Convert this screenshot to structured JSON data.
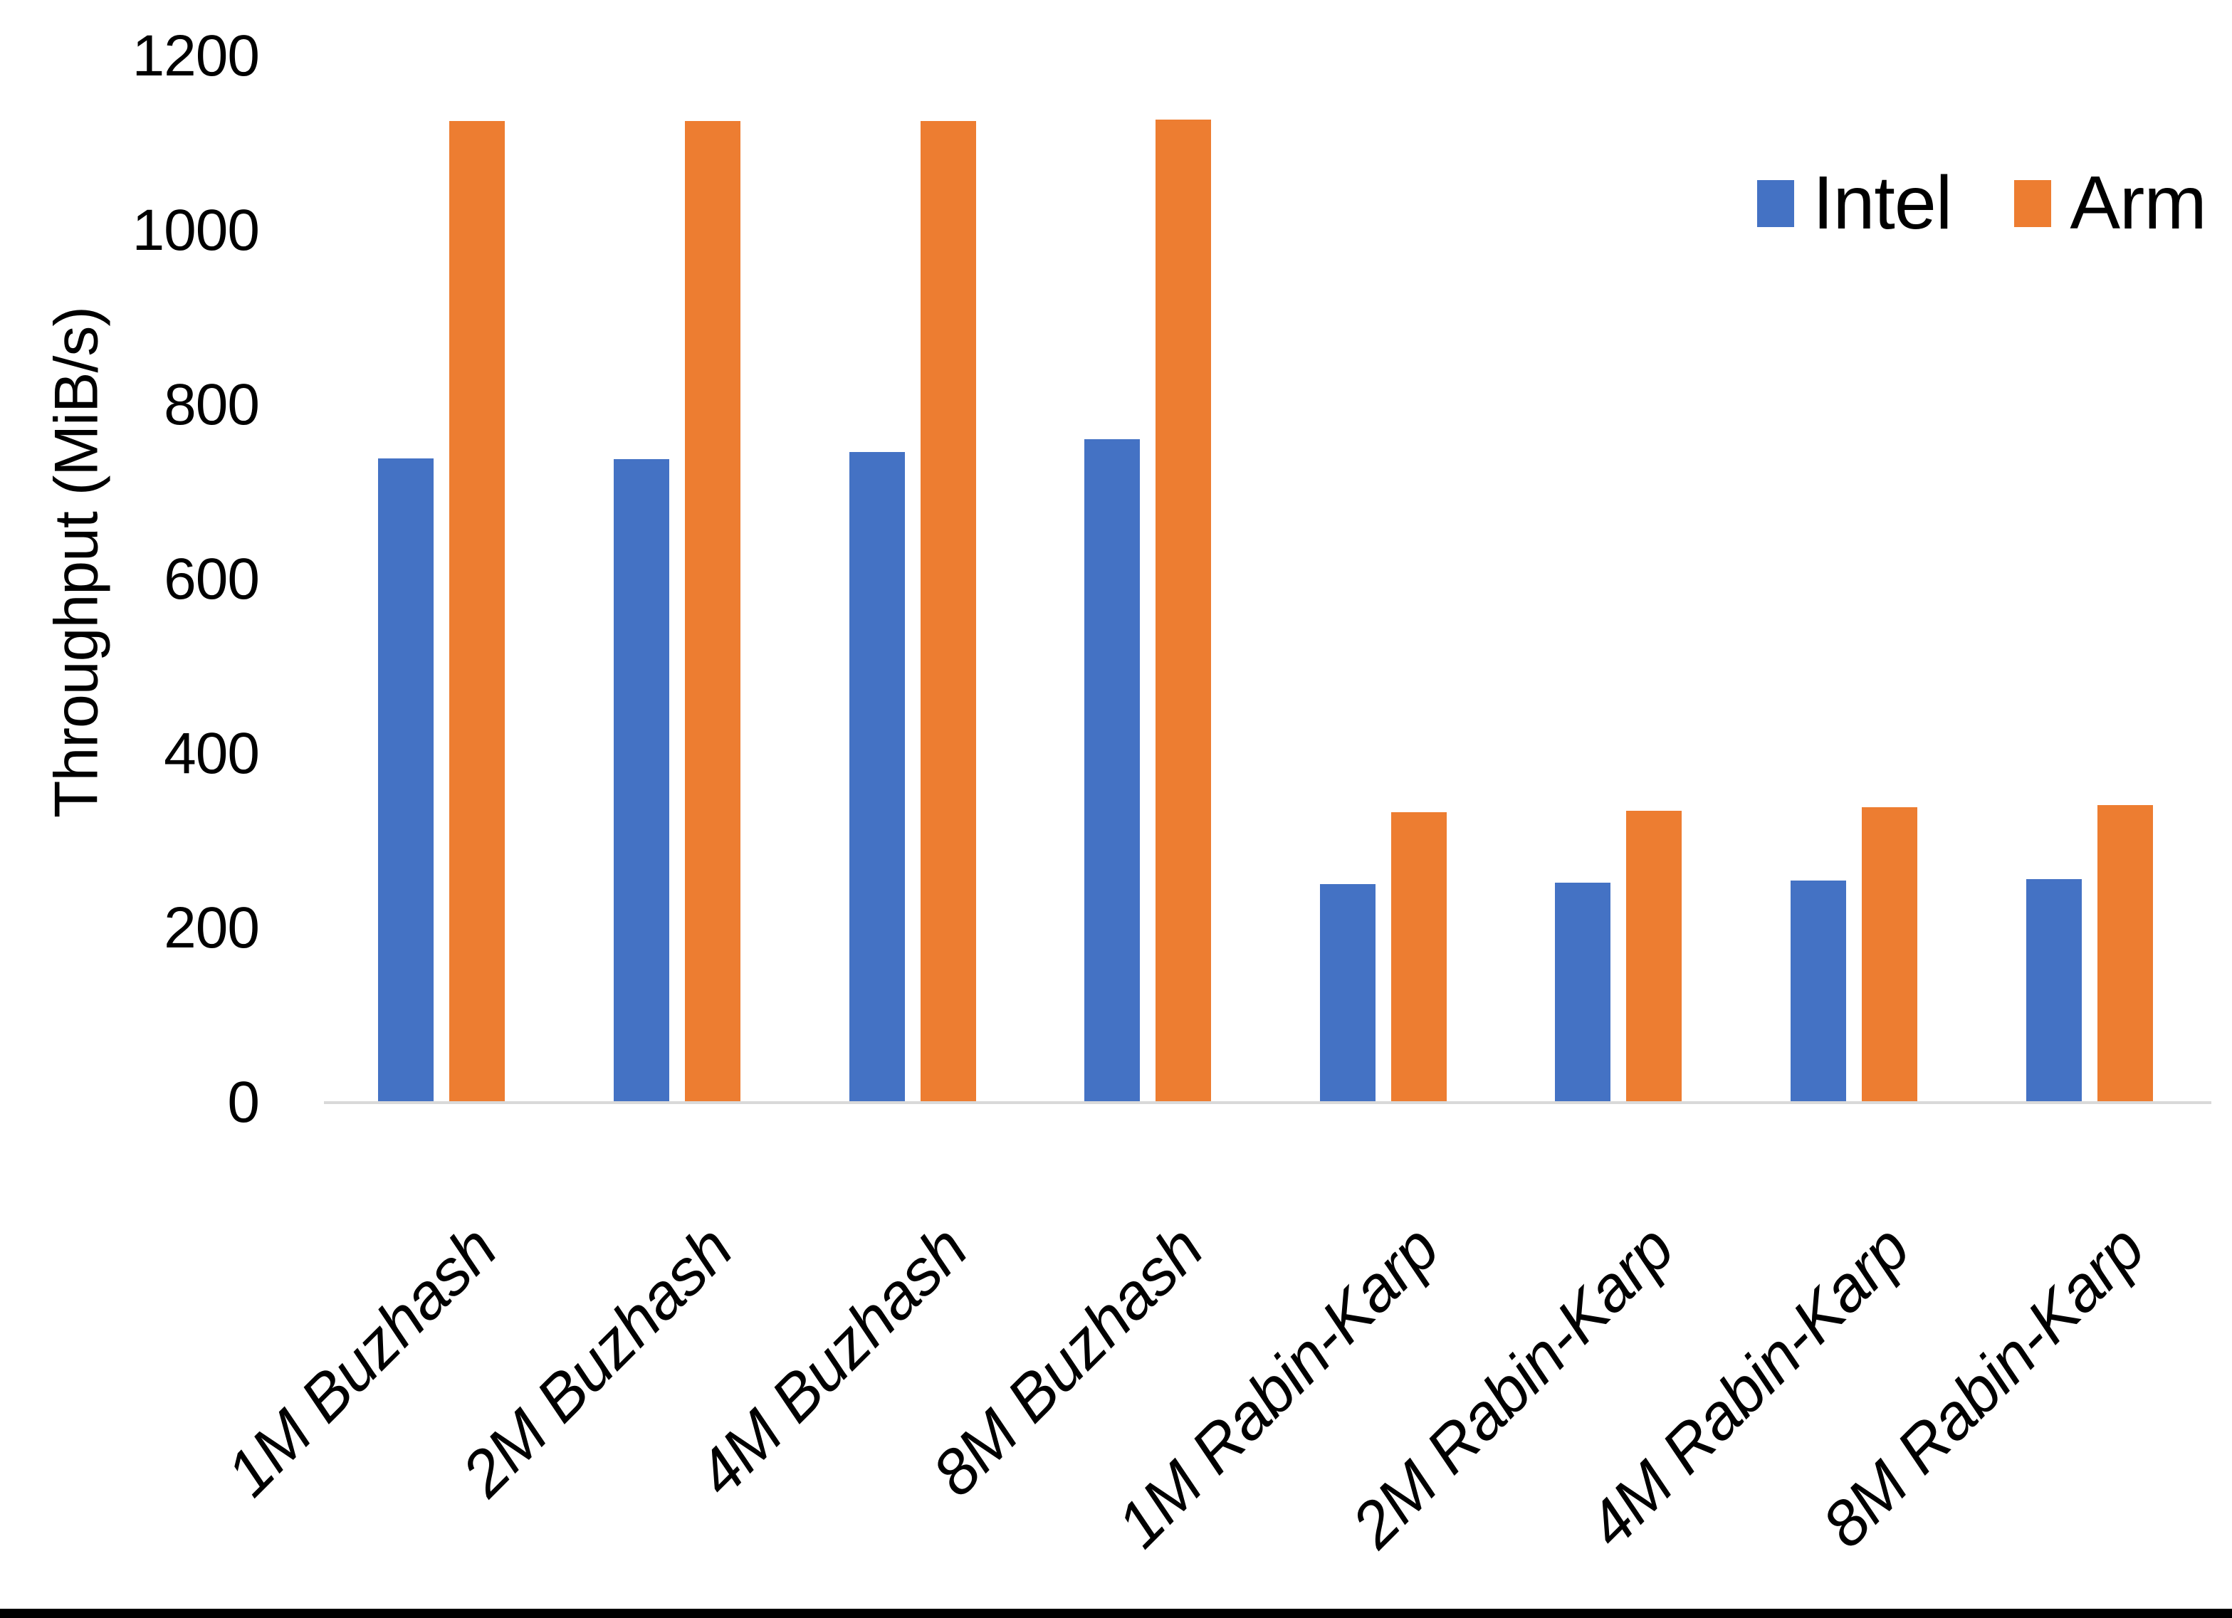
{
  "chart_data": {
    "type": "bar",
    "title": "",
    "categories": [
      "1M Buzhash",
      "2M Buzhash",
      "4M Buzhash",
      "8M Buzhash",
      "1M Rabin-Karp",
      "2M Rabin-Karp",
      "4M Rabin-Karp",
      "8M Rabin-Karp"
    ],
    "series": [
      {
        "name": "Intel",
        "color": "#4472C4",
        "values": [
          739,
          738,
          746,
          761,
          251,
          252,
          255,
          256
        ]
      },
      {
        "name": "Arm",
        "color": "#ED7D31",
        "values": [
          1126,
          1126,
          1126,
          1127,
          333,
          335,
          339,
          341
        ]
      }
    ],
    "xlabel": "",
    "ylabel": "Throughput (MiB/s)",
    "ylim": [
      0,
      1200
    ],
    "yticks": [
      0,
      200,
      400,
      600,
      800,
      1000,
      1200
    ],
    "grid": false,
    "legend_position": "top-right",
    "category_label_rotation_deg": -45,
    "category_label_style": "italic"
  },
  "colors": {
    "background": "#FFFFFF",
    "text": "#000000",
    "axis_line": "#D9D9D9",
    "bottom_border": "#000000"
  }
}
